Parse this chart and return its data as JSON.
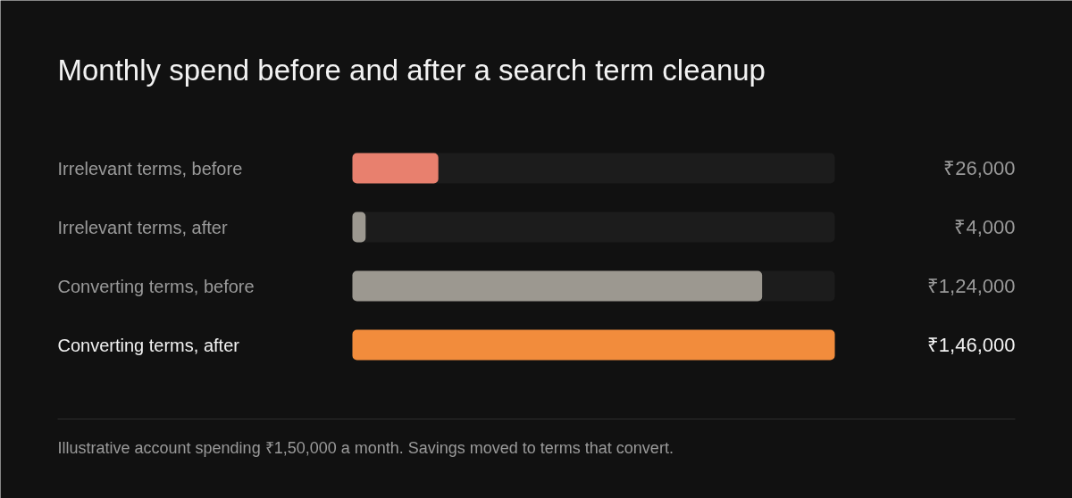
{
  "chart_data": {
    "type": "bar",
    "orientation": "horizontal",
    "title": "Monthly spend before and after a search term cleanup",
    "categories": [
      "Irrelevant terms, before",
      "Irrelevant terms, after",
      "Converting terms, before",
      "Converting terms, after"
    ],
    "values": [
      26000,
      4000,
      124000,
      146000
    ],
    "colors": [
      "#e8806e",
      "#9c9890",
      "#9c9890",
      "#f28c3c"
    ],
    "value_labels": [
      "₹26,000",
      "₹4,000",
      "₹1,24,000",
      "₹1,46,000"
    ],
    "xlim": [
      0,
      146000
    ],
    "annotations": [
      "Illustrative account spending ₹1,50,000 a month. Savings moved to terms that convert."
    ]
  }
}
